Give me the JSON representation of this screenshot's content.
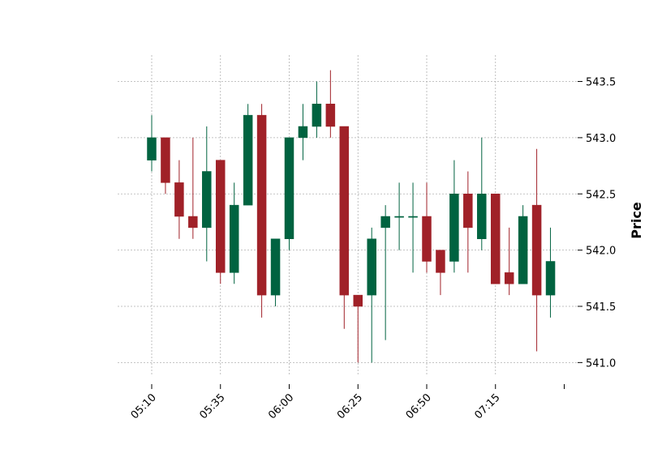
{
  "chart_data": {
    "type": "candlestick",
    "title": "",
    "xlabel": "",
    "ylabel": "Price",
    "ylim": [
      540.88,
      543.72
    ],
    "yticks": [
      541.0,
      541.5,
      542.0,
      542.5,
      543.0,
      543.5
    ],
    "ytick_labels": [
      "541.0",
      "541.5",
      "542.0",
      "542.5",
      "543.0",
      "543.5"
    ],
    "xtick_labels": [
      "05:10",
      "05:35",
      "06:00",
      "06:25",
      "06:50",
      "07:15",
      ""
    ],
    "xtick_indices": [
      0,
      5,
      10,
      15,
      20,
      25,
      30
    ],
    "grid": true,
    "y_axis_side": "right",
    "up_color": "#006340",
    "down_color": "#a02128",
    "candles": [
      {
        "time": "05:10",
        "open": 542.8,
        "high": 543.2,
        "low": 542.7,
        "close": 543.0
      },
      {
        "time": "05:15",
        "open": 543.0,
        "high": 543.0,
        "low": 542.5,
        "close": 542.6
      },
      {
        "time": "05:20",
        "open": 542.6,
        "high": 542.8,
        "low": 542.1,
        "close": 542.3
      },
      {
        "time": "05:25",
        "open": 542.3,
        "high": 543.0,
        "low": 542.1,
        "close": 542.2
      },
      {
        "time": "05:30",
        "open": 542.2,
        "high": 543.1,
        "low": 541.9,
        "close": 542.7
      },
      {
        "time": "05:35",
        "open": 542.8,
        "high": 542.8,
        "low": 541.7,
        "close": 541.8
      },
      {
        "time": "05:40",
        "open": 541.8,
        "high": 542.6,
        "low": 541.7,
        "close": 542.4
      },
      {
        "time": "05:45",
        "open": 542.4,
        "high": 543.3,
        "low": 542.4,
        "close": 543.2
      },
      {
        "time": "05:50",
        "open": 543.2,
        "high": 543.3,
        "low": 541.4,
        "close": 541.6
      },
      {
        "time": "05:55",
        "open": 541.6,
        "high": 542.1,
        "low": 541.5,
        "close": 542.1
      },
      {
        "time": "06:00",
        "open": 542.1,
        "high": 543.0,
        "low": 542.0,
        "close": 543.0
      },
      {
        "time": "06:05",
        "open": 543.0,
        "high": 543.3,
        "low": 542.8,
        "close": 543.1
      },
      {
        "time": "06:10",
        "open": 543.1,
        "high": 543.5,
        "low": 543.0,
        "close": 543.3
      },
      {
        "time": "06:15",
        "open": 543.3,
        "high": 543.6,
        "low": 543.0,
        "close": 543.1
      },
      {
        "time": "06:20",
        "open": 543.1,
        "high": 543.1,
        "low": 541.3,
        "close": 541.6
      },
      {
        "time": "06:25",
        "open": 541.6,
        "high": 541.6,
        "low": 541.0,
        "close": 541.5
      },
      {
        "time": "06:30",
        "open": 541.6,
        "high": 542.2,
        "low": 541.0,
        "close": 542.1
      },
      {
        "time": "06:35",
        "open": 542.2,
        "high": 542.4,
        "low": 541.2,
        "close": 542.3
      },
      {
        "time": "06:40",
        "open": 542.3,
        "high": 542.6,
        "low": 542.0,
        "close": 542.3
      },
      {
        "time": "06:45",
        "open": 542.3,
        "high": 542.6,
        "low": 541.8,
        "close": 542.3
      },
      {
        "time": "06:50",
        "open": 542.3,
        "high": 542.6,
        "low": 541.8,
        "close": 541.9
      },
      {
        "time": "06:55",
        "open": 542.0,
        "high": 542.0,
        "low": 541.6,
        "close": 541.8
      },
      {
        "time": "07:00",
        "open": 541.9,
        "high": 542.8,
        "low": 541.8,
        "close": 542.5
      },
      {
        "time": "07:05",
        "open": 542.5,
        "high": 542.7,
        "low": 541.8,
        "close": 542.2
      },
      {
        "time": "07:10",
        "open": 542.1,
        "high": 543.0,
        "low": 542.0,
        "close": 542.5
      },
      {
        "time": "07:15",
        "open": 542.5,
        "high": 542.5,
        "low": 541.7,
        "close": 541.7
      },
      {
        "time": "07:20",
        "open": 541.8,
        "high": 542.2,
        "low": 541.6,
        "close": 541.7
      },
      {
        "time": "07:25",
        "open": 541.7,
        "high": 542.4,
        "low": 541.7,
        "close": 542.3
      },
      {
        "time": "07:30",
        "open": 542.4,
        "high": 542.9,
        "low": 541.1,
        "close": 541.6
      },
      {
        "time": "07:35",
        "open": 541.6,
        "high": 542.2,
        "low": 541.4,
        "close": 541.9
      }
    ]
  }
}
